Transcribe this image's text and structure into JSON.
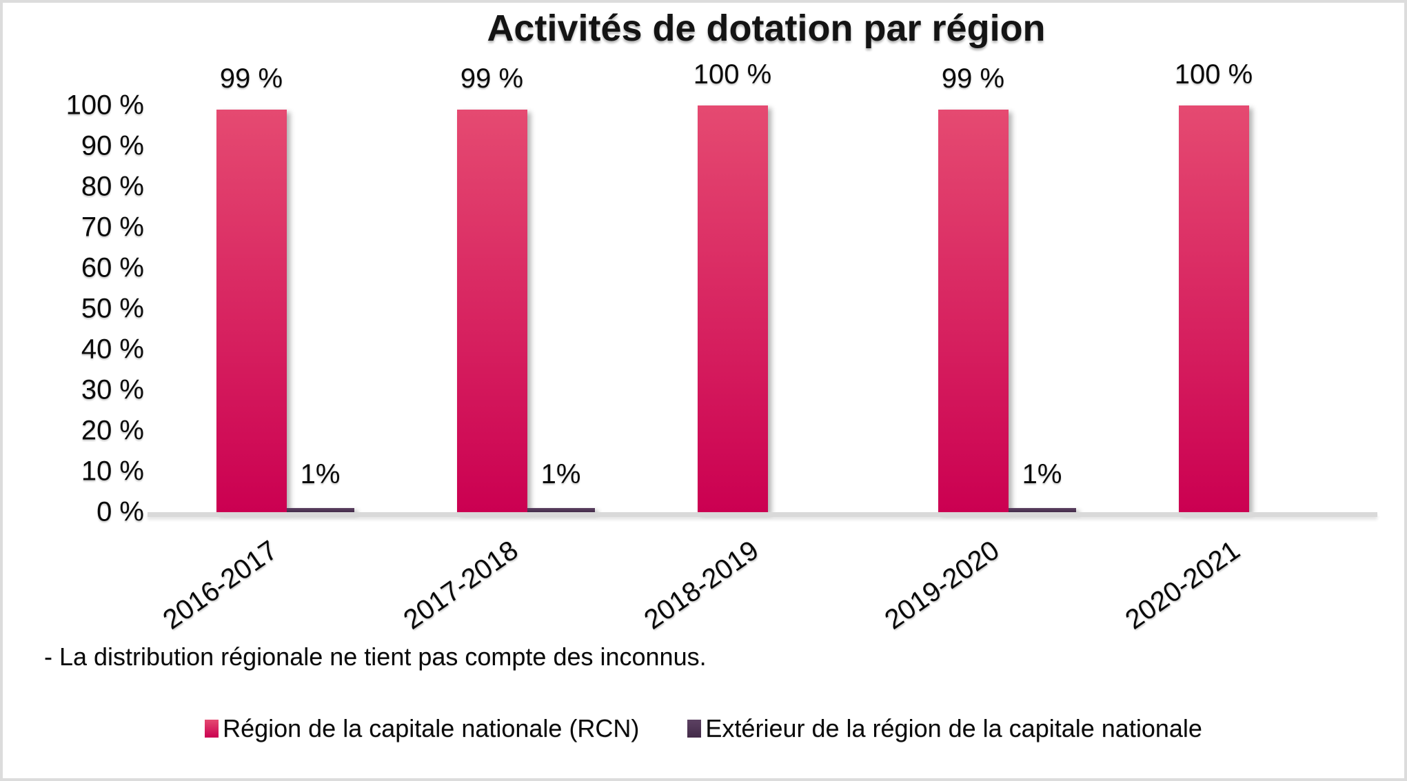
{
  "chart_data": {
    "type": "bar",
    "title": "Activités de dotation par région",
    "categories": [
      "2016-2017",
      "2017-2018",
      "2018-2019",
      "2019-2020",
      "2020-2021"
    ],
    "series": [
      {
        "name": "Région de la capitale nationale (RCN)",
        "values": [
          99,
          99,
          100,
          99,
          100
        ],
        "labels": [
          "99 %",
          "99 %",
          "100 %",
          "99 %",
          "100 %"
        ],
        "color_top": "#e54a71",
        "color_bottom": "#cb0051"
      },
      {
        "name": "Extérieur de la région de la capitale nationale",
        "values": [
          1,
          1,
          0,
          1,
          0
        ],
        "labels": [
          "1%",
          "1%",
          "",
          "1%",
          ""
        ],
        "color_top": "#5c4162",
        "color_bottom": "#432b49"
      }
    ],
    "y_ticks": [
      "100 %",
      "90 %",
      "80 %",
      "70 %",
      "60 %",
      "50 %",
      "40 %",
      "30 %",
      "20 %",
      "10 %",
      "0 %"
    ],
    "ylim": [
      0,
      100
    ],
    "grid": "off",
    "legend_position": "bottom",
    "axis_line_color": "#d9d9d9",
    "footnote": "- La distribution régionale ne tient pas compte des inconnus."
  }
}
